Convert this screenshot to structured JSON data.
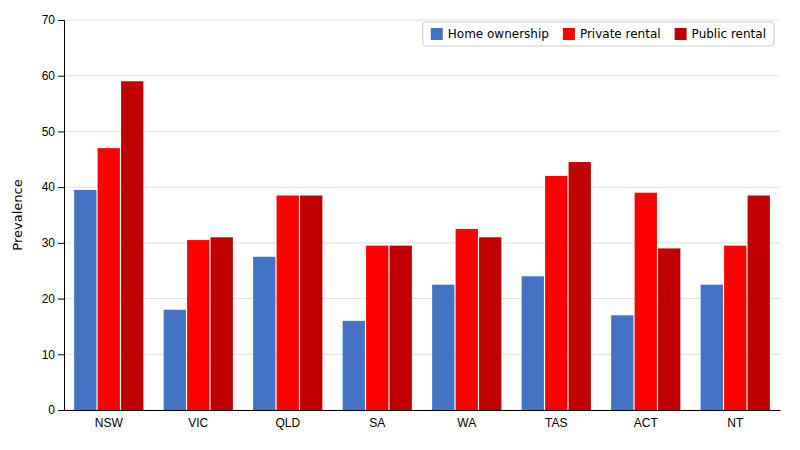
{
  "chart_data": {
    "type": "bar",
    "categories": [
      "NSW",
      "VIC",
      "QLD",
      "SA",
      "WA",
      "TAS",
      "ACT",
      "NT"
    ],
    "series": [
      {
        "name": "Home ownership",
        "color": "#4472C4",
        "values": [
          39.5,
          18.0,
          27.5,
          16.0,
          22.5,
          24.0,
          17.0,
          22.5
        ]
      },
      {
        "name": "Private rental",
        "color": "#FF0000",
        "values": [
          47.0,
          30.5,
          38.5,
          29.5,
          32.5,
          42.0,
          39.0,
          29.5
        ]
      },
      {
        "name": "Public rental",
        "color": "#C00000",
        "values": [
          59.0,
          31.0,
          38.5,
          29.5,
          31.0,
          44.5,
          29.0,
          38.5
        ]
      }
    ],
    "ylabel": "Prevalence",
    "ylim": [
      0,
      70
    ],
    "yticks": [
      0,
      10,
      20,
      30,
      40,
      50,
      60,
      70
    ],
    "grid": true,
    "legend": "upper right"
  }
}
